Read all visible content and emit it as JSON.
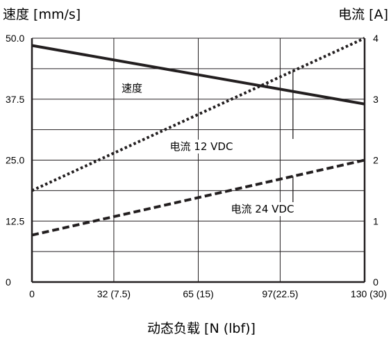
{
  "chart_data": {
    "type": "line",
    "title": "",
    "xlabel": "动态负载 [N (lbf)]",
    "ylabel_left": "速度 [mm/s]",
    "ylabel_right": "电流 [A]",
    "x_ticks": [
      "0",
      "32 (7.5)",
      "65 (15)",
      "97(22.5)",
      "130 (30)"
    ],
    "x_tick_values": [
      0,
      32,
      65,
      97,
      130
    ],
    "xlim": [
      0,
      130
    ],
    "ylim_left": [
      0,
      50
    ],
    "ylim_right": [
      0,
      4
    ],
    "y_left_ticks": [
      "0",
      "12.5",
      "25.0",
      "37.5",
      "50.0"
    ],
    "y_left_tick_values": [
      0,
      12.5,
      25,
      37.5,
      50
    ],
    "y_right_ticks": [
      "0",
      "1",
      "2",
      "3",
      "4"
    ],
    "y_right_tick_values": [
      0,
      1,
      2,
      3,
      4
    ],
    "grid": true,
    "series": [
      {
        "name": "速度",
        "axis": "left",
        "style": "solid",
        "x": [
          0,
          130
        ],
        "y": [
          48.5,
          36.5
        ]
      },
      {
        "name": "电流 12 VDC",
        "axis": "right",
        "style": "dotted",
        "x": [
          0,
          130
        ],
        "y": [
          1.5,
          4.0
        ]
      },
      {
        "name": "电流 24 VDC",
        "axis": "right",
        "style": "dashed",
        "x": [
          0,
          130
        ],
        "y": [
          0.77,
          2.0
        ]
      }
    ],
    "colors": {
      "line": "#231f20",
      "grid": "#231f20",
      "background": "#ffffff"
    }
  }
}
